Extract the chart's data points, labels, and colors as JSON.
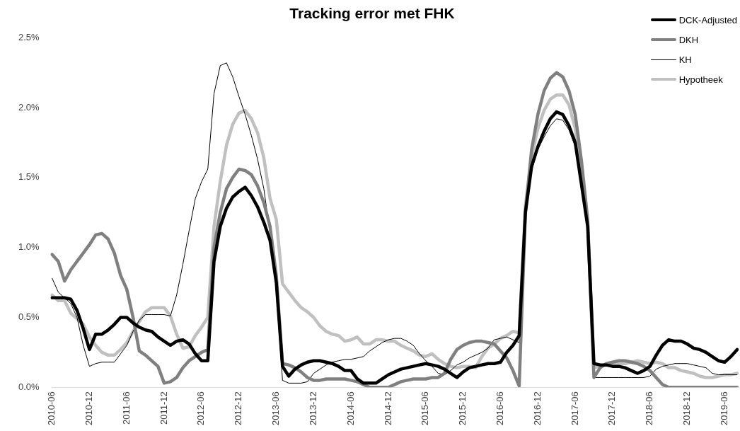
{
  "chart_data": {
    "type": "line",
    "title": "Tracking error met FHK",
    "categories": [
      "2010-06",
      null,
      null,
      null,
      null,
      null,
      "2010-12",
      null,
      null,
      null,
      null,
      null,
      "2011-06",
      null,
      null,
      null,
      null,
      null,
      "2011-12",
      null,
      null,
      null,
      null,
      null,
      "2012-06",
      null,
      null,
      null,
      null,
      null,
      "2012-12",
      null,
      null,
      null,
      null,
      null,
      "2013-06",
      null,
      null,
      null,
      null,
      null,
      "2013-12",
      null,
      null,
      null,
      null,
      null,
      "2014-06",
      null,
      null,
      null,
      null,
      null,
      "2014-12",
      null,
      null,
      null,
      null,
      null,
      "2015-06",
      null,
      null,
      null,
      null,
      null,
      "2015-12",
      null,
      null,
      null,
      null,
      null,
      "2016-06",
      null,
      null,
      null,
      null,
      null,
      "2016-12",
      null,
      null,
      null,
      null,
      null,
      "2017-06",
      null,
      null,
      null,
      null,
      null,
      "2017-12",
      null,
      null,
      null,
      null,
      null,
      "2018-06",
      null,
      null,
      null,
      null,
      null,
      "2018-12",
      null,
      null,
      null,
      null,
      null,
      "2019-06",
      null,
      null
    ],
    "series": [
      {
        "name": "DCK-Adjusted",
        "color": "#000000",
        "values": [
          0.64,
          0.64,
          0.64,
          0.63,
          0.55,
          0.42,
          0.27,
          0.38,
          0.38,
          0.41,
          0.45,
          0.5,
          0.5,
          0.46,
          0.43,
          0.41,
          0.4,
          0.36,
          0.33,
          0.3,
          0.33,
          0.34,
          0.31,
          0.24,
          0.19,
          0.19,
          0.9,
          1.15,
          1.28,
          1.36,
          1.4,
          1.43,
          1.37,
          1.29,
          1.18,
          1.05,
          0.75,
          0.15,
          0.08,
          0.13,
          0.16,
          0.18,
          0.19,
          0.19,
          0.18,
          0.17,
          0.15,
          0.12,
          0.12,
          0.06,
          0.03,
          0.03,
          0.03,
          0.06,
          0.09,
          0.11,
          0.13,
          0.14,
          0.15,
          0.16,
          0.17,
          0.16,
          0.15,
          0.13,
          0.1,
          0.07,
          0.11,
          0.14,
          0.15,
          0.16,
          0.17,
          0.17,
          0.18,
          0.25,
          0.3,
          0.37,
          1.25,
          1.58,
          1.72,
          1.83,
          1.92,
          1.97,
          1.95,
          1.87,
          1.75,
          1.45,
          1.15,
          0.17,
          0.16,
          0.16,
          0.15,
          0.15,
          0.14,
          0.12,
          0.1,
          0.12,
          0.15,
          0.23,
          0.3,
          0.34,
          0.33,
          0.33,
          0.31,
          0.28,
          0.27,
          0.25,
          0.22,
          0.19,
          0.18,
          0.22,
          0.27
        ]
      },
      {
        "name": "DKH",
        "color": "#808080",
        "values": [
          0.95,
          0.9,
          0.76,
          0.84,
          0.9,
          0.96,
          1.02,
          1.09,
          1.1,
          1.06,
          0.96,
          0.8,
          0.7,
          0.5,
          0.26,
          0.23,
          0.19,
          0.15,
          0.03,
          0.04,
          0.07,
          0.14,
          0.19,
          0.22,
          0.25,
          0.27,
          1.0,
          1.25,
          1.42,
          1.5,
          1.56,
          1.55,
          1.52,
          1.44,
          1.32,
          1.15,
          0.8,
          0.17,
          0.16,
          0.14,
          0.11,
          0.07,
          0.05,
          0.05,
          0.06,
          0.06,
          0.06,
          0.06,
          0.05,
          0.04,
          0.02,
          0,
          0,
          0,
          0,
          0.02,
          0.04,
          0.05,
          0.06,
          0.06,
          0.06,
          0.07,
          0.07,
          0.1,
          0.2,
          0.27,
          0.3,
          0.32,
          0.33,
          0.33,
          0.32,
          0.31,
          0.26,
          0.21,
          0.12,
          0.01,
          1.25,
          1.7,
          1.95,
          2.12,
          2.21,
          2.25,
          2.22,
          2.12,
          1.95,
          1.62,
          1.2,
          0.07,
          0.14,
          0.17,
          0.18,
          0.19,
          0.19,
          0.18,
          0.17,
          0.15,
          0.12,
          0.07,
          0.02,
          0,
          0,
          0,
          0,
          0,
          0,
          0,
          0,
          0,
          0,
          0,
          0
        ]
      },
      {
        "name": "KH",
        "color": "#000000",
        "values": [
          0.78,
          0.68,
          0.64,
          0.6,
          0.5,
          0.3,
          0.15,
          0.17,
          0.18,
          0.18,
          0.18,
          0.24,
          0.3,
          0.4,
          0.48,
          0.52,
          0.52,
          0.52,
          0.52,
          0.51,
          0.66,
          0.88,
          1.12,
          1.35,
          1.47,
          1.56,
          2.1,
          2.3,
          2.32,
          2.22,
          2.08,
          1.95,
          1.8,
          1.63,
          1.42,
          1.1,
          0.7,
          0.05,
          0.03,
          0.03,
          0.03,
          0.04,
          0.1,
          0.13,
          0.16,
          0.18,
          0.19,
          0.2,
          0.2,
          0.21,
          0.22,
          0.26,
          0.29,
          0.32,
          0.34,
          0.35,
          0.35,
          0.33,
          0.3,
          0.24,
          0.19,
          0.15,
          0.1,
          0.09,
          0.12,
          0.16,
          0.18,
          0.21,
          0.23,
          0.25,
          0.28,
          0.34,
          0.35,
          0.36,
          0.34,
          0.32,
          1.2,
          1.55,
          1.7,
          1.79,
          1.87,
          1.92,
          1.91,
          1.84,
          1.72,
          1.5,
          1.15,
          0.07,
          0.07,
          0.07,
          0.07,
          0.07,
          0.07,
          0.07,
          0.07,
          0.07,
          0.08,
          0.13,
          0.15,
          0.16,
          0.17,
          0.17,
          0.17,
          0.16,
          0.15,
          0.14,
          0.1,
          0.09,
          0.09,
          0.09,
          0.09
        ]
      },
      {
        "name": "Hypotheek",
        "color": "#c0c0c0",
        "values": [
          0.66,
          0.62,
          0.62,
          0.53,
          0.49,
          0.45,
          0.36,
          0.3,
          0.25,
          0.23,
          0.23,
          0.27,
          0.32,
          0.4,
          0.47,
          0.54,
          0.57,
          0.57,
          0.57,
          0.51,
          0.38,
          0.28,
          0.29,
          0.37,
          0.43,
          0.5,
          1.15,
          1.47,
          1.73,
          1.88,
          1.96,
          1.98,
          1.92,
          1.82,
          1.64,
          1.35,
          1.2,
          0.74,
          0.68,
          0.62,
          0.57,
          0.54,
          0.5,
          0.44,
          0.4,
          0.38,
          0.37,
          0.33,
          0.34,
          0.36,
          0.31,
          0.31,
          0.34,
          0.34,
          0.33,
          0.33,
          0.3,
          0.28,
          0.26,
          0.23,
          0.22,
          0.24,
          0.2,
          0.17,
          0.15,
          0.14,
          0.15,
          0.15,
          0.14,
          0.22,
          0.28,
          0.31,
          0.35,
          0.37,
          0.4,
          0.39,
          1.3,
          1.65,
          1.85,
          1.98,
          2.06,
          2.09,
          2.09,
          2.02,
          1.85,
          1.55,
          1.18,
          0.14,
          0.15,
          0.16,
          0.16,
          0.17,
          0.17,
          0.18,
          0.19,
          0.18,
          0.17,
          0.18,
          0.17,
          0.14,
          0.14,
          0.12,
          0.11,
          0.1,
          0.08,
          0.07,
          0.07,
          0.08,
          0.09,
          0.09,
          0.1
        ]
      }
    ],
    "ylim": [
      0,
      2.5
    ],
    "yticks": [
      {
        "value": 0,
        "label": "0.0%"
      },
      {
        "value": 0.5,
        "label": "0.5%"
      },
      {
        "value": 1,
        "label": "1.0%"
      },
      {
        "value": 1.5,
        "label": "1.5%"
      },
      {
        "value": 2,
        "label": "2.0%"
      },
      {
        "value": 2.5,
        "label": "2.5%"
      }
    ],
    "grid": false,
    "legend": "top right",
    "marker": "none",
    "line_style": "solid"
  }
}
